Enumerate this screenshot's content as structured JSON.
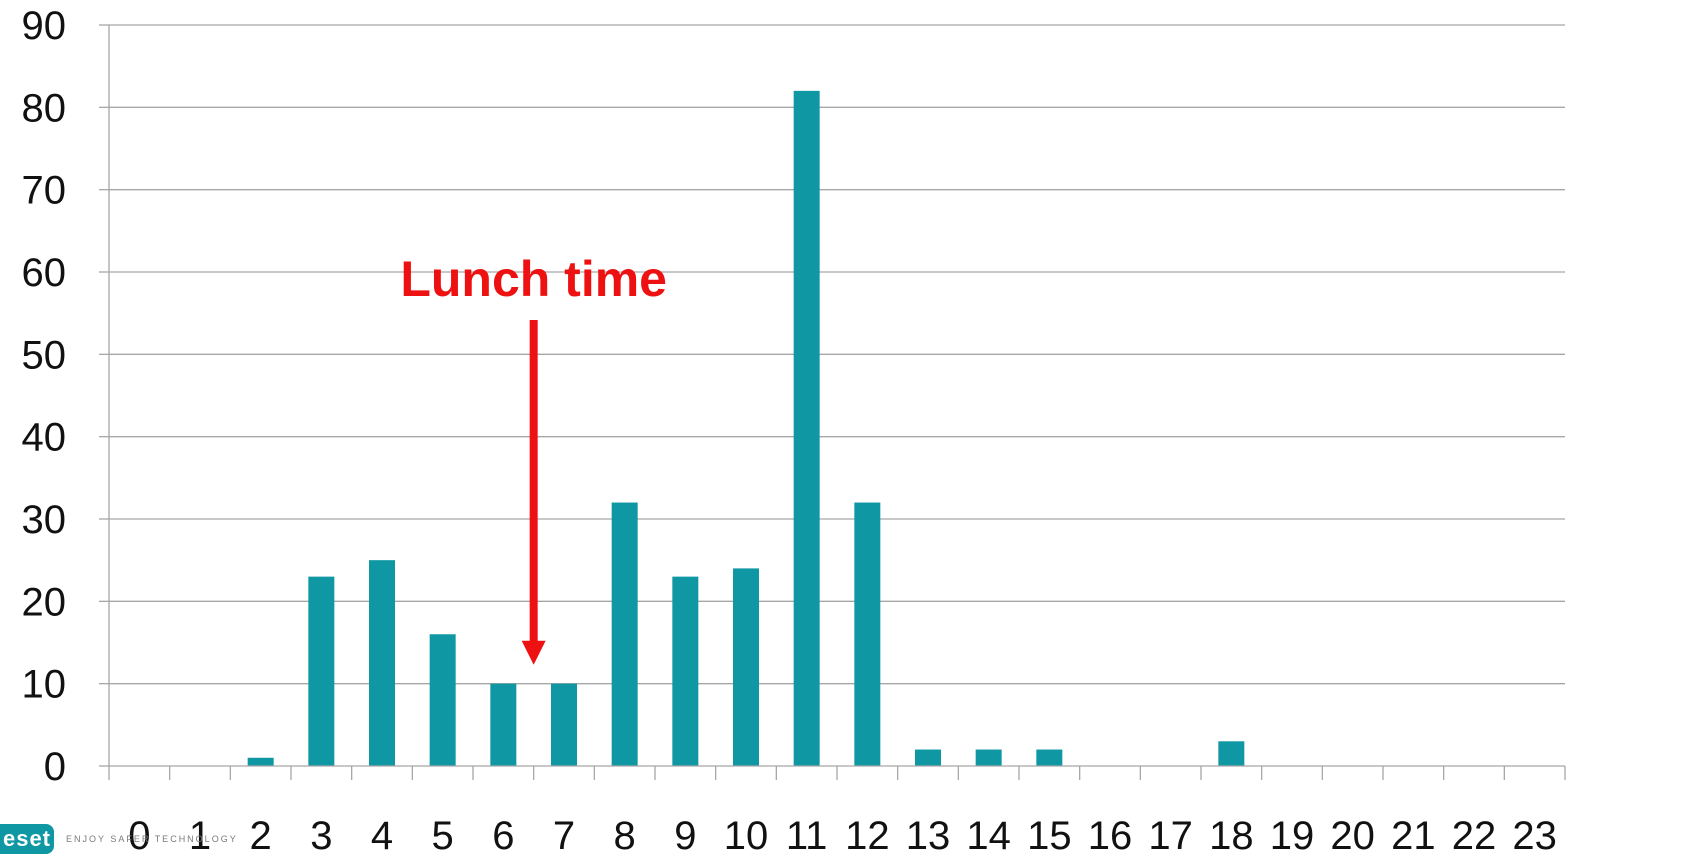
{
  "chart_data": {
    "type": "bar",
    "title": "",
    "xlabel": "",
    "ylabel": "",
    "categories": [
      "0",
      "1",
      "2",
      "3",
      "4",
      "5",
      "6",
      "7",
      "8",
      "9",
      "10",
      "11",
      "12",
      "13",
      "14",
      "15",
      "16",
      "17",
      "18",
      "19",
      "20",
      "21",
      "22",
      "23"
    ],
    "values": [
      0,
      0,
      1,
      23,
      25,
      16,
      10,
      10,
      32,
      23,
      24,
      82,
      32,
      2,
      2,
      2,
      0,
      0,
      3,
      0,
      0,
      0,
      0,
      0
    ],
    "ylim": [
      0,
      90
    ],
    "yticks": [
      0,
      10,
      20,
      30,
      40,
      50,
      60,
      70,
      80,
      90
    ],
    "grid": true,
    "legend": "none",
    "bar_color": "#0f97a3",
    "gridline_color": "#a6a6a6",
    "annotation": {
      "text": "Lunch time",
      "color": "#ee1111",
      "points_to_between": [
        "6",
        "7"
      ]
    }
  },
  "logo": {
    "badge_text": "eset",
    "tagline": "ENJOY SAFER TECHNOLOGY",
    "badge_color": "#0f97a3"
  }
}
